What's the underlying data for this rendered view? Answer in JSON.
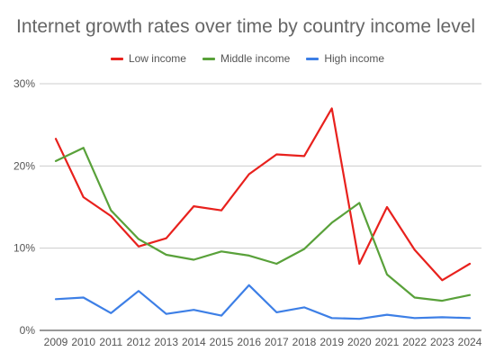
{
  "chart_data": {
    "type": "line",
    "title": "Internet growth rates over time by country income level",
    "xlabel": "",
    "ylabel": "",
    "categories": [
      "2009",
      "2010",
      "2011",
      "2012",
      "2013",
      "2014",
      "2015",
      "2016",
      "2017",
      "2018",
      "2019",
      "2020",
      "2021",
      "2022",
      "2023",
      "2024"
    ],
    "ylim": [
      0,
      30
    ],
    "yticks": [
      0,
      10,
      20,
      30
    ],
    "ytick_labels": [
      "0%",
      "10%",
      "20%",
      "30%"
    ],
    "grid": true,
    "legend_position": "top-center",
    "series": [
      {
        "name": "Low income",
        "color": "#e8211d",
        "values": [
          23.3,
          16.2,
          13.9,
          10.2,
          11.2,
          15.1,
          14.6,
          19.0,
          21.4,
          21.2,
          27.0,
          8.1,
          15.0,
          9.8,
          6.1,
          8.1
        ]
      },
      {
        "name": "Middle income",
        "color": "#59a13a",
        "values": [
          20.6,
          22.2,
          14.6,
          11.1,
          9.2,
          8.6,
          9.6,
          9.1,
          8.1,
          9.9,
          13.1,
          15.5,
          6.8,
          4.0,
          3.6,
          4.3
        ]
      },
      {
        "name": "High income",
        "color": "#3d7fe6",
        "values": [
          3.8,
          4.0,
          2.1,
          4.8,
          2.0,
          2.5,
          1.8,
          5.5,
          2.2,
          2.8,
          1.5,
          1.4,
          1.9,
          1.5,
          1.6,
          1.5
        ]
      }
    ]
  }
}
